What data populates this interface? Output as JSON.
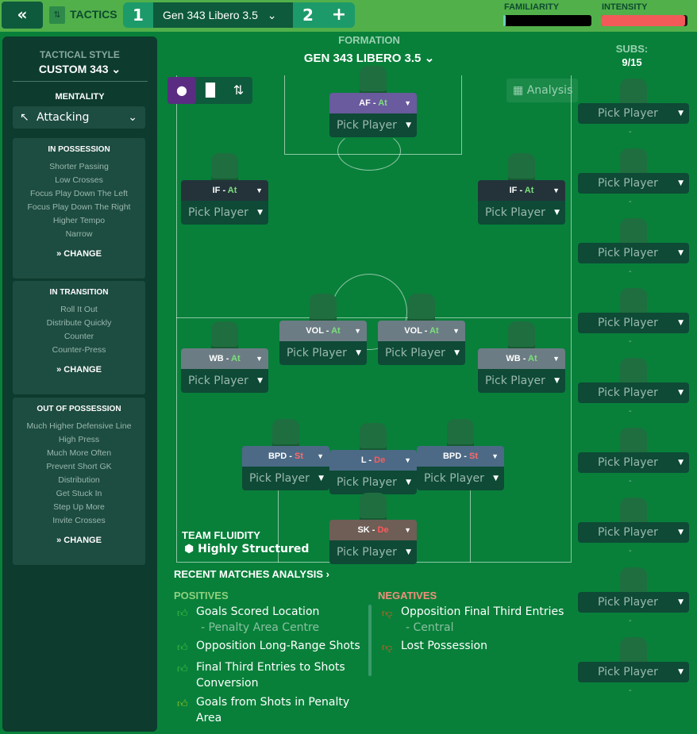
{
  "topbar": {
    "back": "«",
    "tactics": "TACTICS",
    "tab1": "1",
    "selected_tactic": "Gen 343 Libero 3.5",
    "tab2": "2",
    "add": "+",
    "familiarity": "FAMILIARITY",
    "intensity": "INTENSITY",
    "familiarity_level": 0.03,
    "intensity_level": 0.97,
    "intensity_color": "#f25a5a"
  },
  "left": {
    "style_label": "TACTICAL STYLE",
    "style_value": "CUSTOM 343",
    "mentality_label": "MENTALITY",
    "mentality_value": "Attacking",
    "boxes": [
      {
        "title": "IN POSSESSION",
        "items": [
          "Shorter Passing",
          "Low Crosses",
          "Focus Play Down The Left",
          "Focus Play Down The Right",
          "Higher Tempo",
          "Narrow"
        ],
        "change": "CHANGE"
      },
      {
        "title": "IN TRANSITION",
        "items": [
          "Roll It Out",
          "Distribute Quickly",
          "Counter",
          "Counter-Press"
        ],
        "change": "CHANGE"
      },
      {
        "title": "OUT OF POSSESSION",
        "items": [
          "Much Higher Defensive Line",
          "High Press",
          "Much More Often",
          "Prevent Short GK",
          "Distribution",
          "Get Stuck In",
          "Step Up More",
          "Invite Crosses"
        ],
        "change": "CHANGE"
      }
    ]
  },
  "formation": {
    "label": "FORMATION",
    "name": "GEN 343 LIBERO 3.5",
    "analysis": "Analysis"
  },
  "subs": {
    "label": "SUBS:",
    "count": "9/15",
    "pick": "Pick Player",
    "dash": "-"
  },
  "players": [
    {
      "role": "AF",
      "duty": "At",
      "color": "#6a5a9e"
    },
    {
      "role": "IF",
      "duty": "At",
      "color": "#24333a"
    },
    {
      "role": "IF",
      "duty": "At",
      "color": "#24333a"
    },
    {
      "role": "VOL",
      "duty": "At",
      "color": "#6c7c84"
    },
    {
      "role": "VOL",
      "duty": "At",
      "color": "#6c7c84"
    },
    {
      "role": "WB",
      "duty": "At",
      "color": "#6c7c84"
    },
    {
      "role": "WB",
      "duty": "At",
      "color": "#6c7c84"
    },
    {
      "role": "BPD",
      "duty": "St",
      "color": "#4c6a86"
    },
    {
      "role": "BPD",
      "duty": "St",
      "color": "#4c6a86"
    },
    {
      "role": "L",
      "duty": "De",
      "color": "#4c6a86"
    },
    {
      "role": "SK",
      "duty": "De",
      "color": "#6e5e56"
    }
  ],
  "pick_label": "Pick Player",
  "fluidity": {
    "label": "TEAM FLUIDITY",
    "value": "Highly Structured"
  },
  "analysis": {
    "title": "RECENT MATCHES ANALYSIS",
    "positives_label": "POSITIVES",
    "negatives_label": "NEGATIVES",
    "positives": [
      {
        "text": "Goals Scored Location",
        "sub": "- Penalty Area Centre"
      },
      {
        "text": "Opposition Long-Range Shots"
      },
      {
        "text": "Final Third Entries to Shots Conversion"
      },
      {
        "text": "Goals from Shots in Penalty Area"
      }
    ],
    "negatives": [
      {
        "text": "Opposition Final Third Entries",
        "sub": "- Central"
      },
      {
        "text": "Lost Possession"
      }
    ]
  },
  "colors": {
    "attack": "#7be07b",
    "support": "#ff6a6a",
    "defend": "#ff5a5a",
    "positive": "#8fd07f",
    "negative": "#f0907a"
  }
}
